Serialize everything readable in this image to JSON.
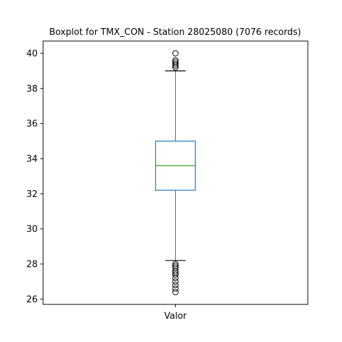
{
  "chart_data": {
    "type": "boxplot",
    "title": "Boxplot for TMX_CON - Station 28025080 (7076 records)",
    "xlabel": "",
    "ylabel": "",
    "categories": [
      "Valor"
    ],
    "ylim": [
      25.7,
      40.7
    ],
    "yticks": [
      26,
      28,
      30,
      32,
      34,
      36,
      38,
      40
    ],
    "grid": false,
    "boxes": [
      {
        "category": "Valor",
        "whisker_low": 28.2,
        "q1": 32.2,
        "median": 33.6,
        "q3": 35.0,
        "whisker_high": 39.0,
        "outliers": [
          26.4,
          26.6,
          26.8,
          27.0,
          27.2,
          27.4,
          27.5,
          27.6,
          27.8,
          27.9,
          28.0,
          39.2,
          39.3,
          39.4,
          39.5,
          39.6,
          40.0
        ]
      }
    ],
    "colors": {
      "box": "#1f77b4",
      "median": "#2ca02c",
      "caps": "#000000",
      "outliers": "#000000"
    }
  }
}
